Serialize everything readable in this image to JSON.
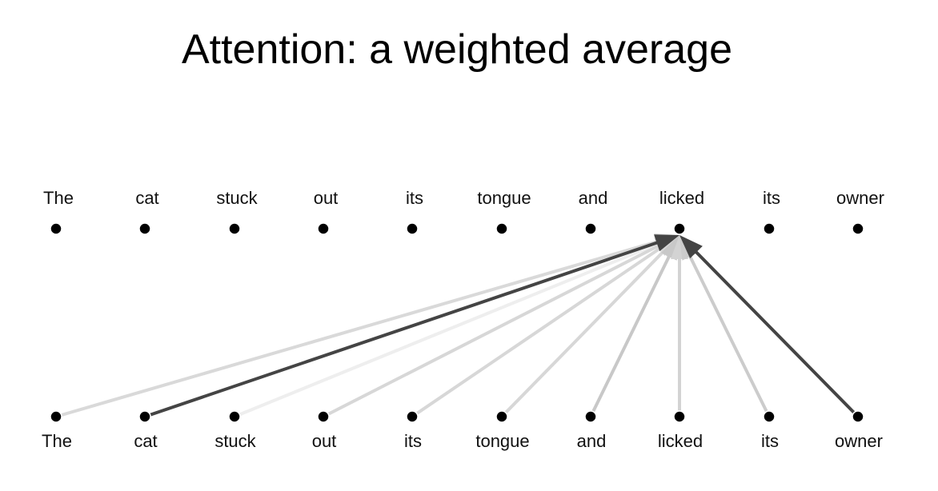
{
  "title": "Attention: a weighted average",
  "top_tokens": [
    "The",
    "cat",
    "stuck",
    "out",
    "its",
    "tongue",
    "and",
    "licked",
    "its",
    "owner"
  ],
  "bottom_tokens": [
    "The",
    "cat",
    "stuck",
    "out",
    "its",
    "tongue",
    "and",
    "licked",
    "its",
    "owner"
  ],
  "query_index": 7,
  "colors": {
    "node": "#000000",
    "strong_edge": "#444444",
    "text": "#111111"
  },
  "edges": [
    {
      "from": 0,
      "color": "#d9d9d9"
    },
    {
      "from": 1,
      "color": "#444444"
    },
    {
      "from": 2,
      "color": "#eeeeee"
    },
    {
      "from": 3,
      "color": "#d7d7d7"
    },
    {
      "from": 4,
      "color": "#d7d7d7"
    },
    {
      "from": 5,
      "color": "#d7d7d7"
    },
    {
      "from": 6,
      "color": "#c8c8c8"
    },
    {
      "from": 7,
      "color": "#d3d3d3"
    },
    {
      "from": 8,
      "color": "#cccccc"
    },
    {
      "from": 9,
      "color": "#444444"
    }
  ]
}
